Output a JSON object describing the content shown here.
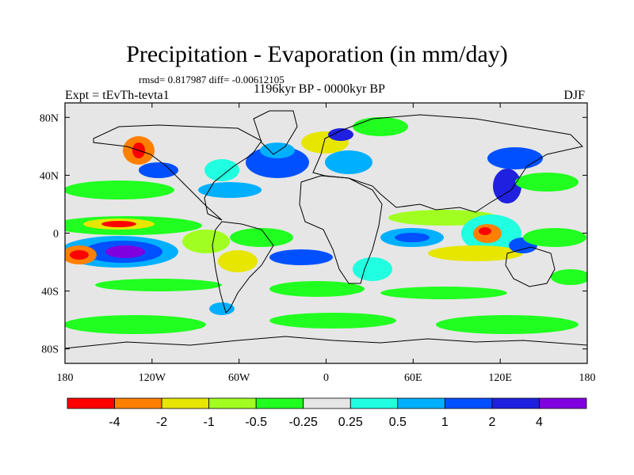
{
  "title": "Precipitation - Evaporation (in mm/day)",
  "stats": "rmsd= 0.817987  diff= -0.00612105",
  "subtitle_center": "1196kyr BP - 0000kyr BP",
  "subtitle_left": "Expt = tEvTh-tevta1",
  "subtitle_right": "DJF",
  "axes": {
    "y_ticks": [
      "80N",
      "40N",
      "0",
      "40S",
      "80S"
    ],
    "y_values": [
      80,
      40,
      0,
      -40,
      -80
    ],
    "x_ticks": [
      "180",
      "120W",
      "60W",
      "0",
      "60E",
      "120E",
      "180"
    ],
    "x_values": [
      -180,
      -120,
      -60,
      0,
      60,
      120,
      180
    ],
    "lat_range": [
      -90,
      90
    ],
    "lon_range": [
      -180,
      180
    ]
  },
  "colorbar": {
    "colors": [
      "#ff0000",
      "#ff8000",
      "#e6e600",
      "#a0ff20",
      "#20ff20",
      "#e6e6e6",
      "#20ffe0",
      "#00b0ff",
      "#0050ff",
      "#2020e0",
      "#8000e0"
    ],
    "labels": [
      "-4",
      "-2",
      "-1",
      "-0.5",
      "-0.25",
      "0.25",
      "0.5",
      "1",
      "2",
      "4"
    ]
  },
  "map_colors": {
    "ocean_background": "#e6e6e6",
    "coastline": "#000000"
  }
}
